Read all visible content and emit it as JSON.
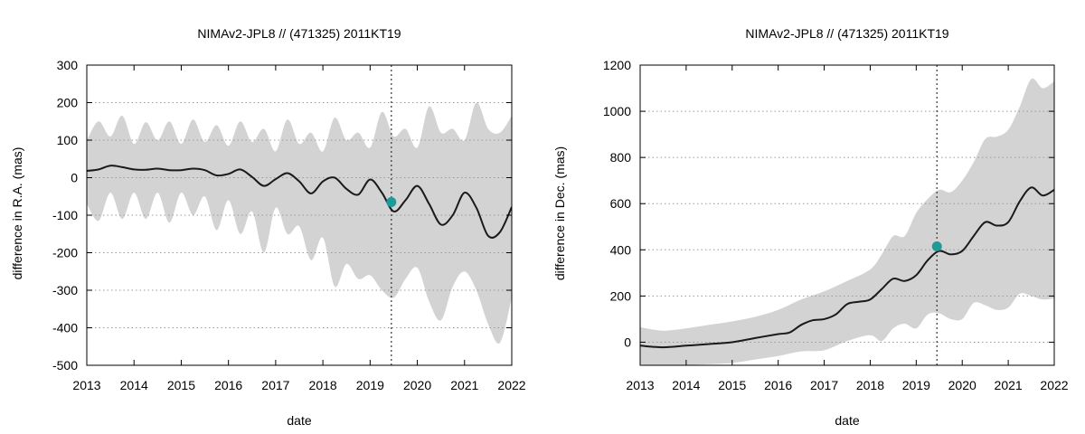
{
  "colors": {
    "band": "#d3d3d3",
    "line": "#1a1a1a",
    "marker": "#1e9a98",
    "grid": "#9a9a9a"
  },
  "chart_data": [
    {
      "type": "line",
      "title": "NIMAv2-JPL8 // (471325) 2011KT19",
      "xlabel": "date",
      "ylabel": "difference in R.A. (mas)",
      "xlim": [
        2013,
        2022
      ],
      "ylim": [
        -500,
        300
      ],
      "xticks": [
        "2013",
        "2014",
        "2015",
        "2016",
        "2017",
        "2018",
        "2019",
        "2020",
        "2021",
        "2022"
      ],
      "yticks": [
        "300",
        "200",
        "100",
        "0",
        "-100",
        "-200",
        "-300",
        "-400",
        "-500"
      ],
      "grid": "horizontal-dotted",
      "vline_x": 2019.45,
      "marker": {
        "x": 2019.45,
        "y": -65
      },
      "center": {
        "x": [
          2013.0,
          2013.25,
          2013.5,
          2013.75,
          2014.0,
          2014.25,
          2014.5,
          2014.75,
          2015.0,
          2015.25,
          2015.5,
          2015.75,
          2016.0,
          2016.25,
          2016.5,
          2016.75,
          2017.0,
          2017.25,
          2017.5,
          2017.75,
          2018.0,
          2018.25,
          2018.5,
          2018.75,
          2019.0,
          2019.25,
          2019.5,
          2019.75,
          2020.0,
          2020.25,
          2020.5,
          2020.75,
          2021.0,
          2021.25,
          2021.5,
          2021.75,
          2022.0
        ],
        "y": [
          18,
          22,
          32,
          28,
          22,
          21,
          24,
          20,
          20,
          24,
          20,
          6,
          10,
          22,
          2,
          -22,
          -4,
          12,
          -10,
          -42,
          -10,
          0,
          -30,
          -45,
          -5,
          -40,
          -90,
          -60,
          -22,
          -70,
          -125,
          -100,
          -40,
          -80,
          -155,
          -145,
          -78
        ]
      },
      "upper": {
        "x": [
          2013.0,
          2013.25,
          2013.5,
          2013.75,
          2014.0,
          2014.25,
          2014.5,
          2014.75,
          2015.0,
          2015.25,
          2015.5,
          2015.75,
          2016.0,
          2016.25,
          2016.5,
          2016.75,
          2017.0,
          2017.25,
          2017.5,
          2017.75,
          2018.0,
          2018.25,
          2018.5,
          2018.75,
          2019.0,
          2019.25,
          2019.5,
          2019.75,
          2020.0,
          2020.25,
          2020.5,
          2020.75,
          2021.0,
          2021.25,
          2021.5,
          2021.75,
          2022.0
        ],
        "y": [
          100,
          150,
          110,
          165,
          90,
          148,
          100,
          150,
          90,
          155,
          95,
          140,
          85,
          150,
          95,
          130,
          70,
          155,
          90,
          120,
          70,
          160,
          100,
          120,
          80,
          175,
          110,
          130,
          80,
          190,
          120,
          130,
          100,
          200,
          130,
          120,
          165
        ]
      },
      "lower": {
        "x": [
          2013.0,
          2013.25,
          2013.5,
          2013.75,
          2014.0,
          2014.25,
          2014.5,
          2014.75,
          2015.0,
          2015.25,
          2015.5,
          2015.75,
          2016.0,
          2016.25,
          2016.5,
          2016.75,
          2017.0,
          2017.25,
          2017.5,
          2017.75,
          2018.0,
          2018.25,
          2018.5,
          2018.75,
          2019.0,
          2019.25,
          2019.5,
          2019.75,
          2020.0,
          2020.25,
          2020.5,
          2020.75,
          2021.0,
          2021.25,
          2021.5,
          2021.75,
          2022.0
        ],
        "y": [
          -70,
          -115,
          -40,
          -110,
          -40,
          -110,
          -40,
          -120,
          -40,
          -100,
          -50,
          -140,
          -60,
          -150,
          -90,
          -200,
          -80,
          -150,
          -130,
          -220,
          -160,
          -290,
          -230,
          -270,
          -260,
          -300,
          -320,
          -270,
          -240,
          -330,
          -380,
          -290,
          -250,
          -300,
          -390,
          -440,
          -320
        ]
      }
    },
    {
      "type": "line",
      "title": "NIMAv2-JPL8 // (471325) 2011KT19",
      "xlabel": "date",
      "ylabel": "difference in Dec. (mas)",
      "xlim": [
        2013,
        2022
      ],
      "ylim": [
        -100,
        1200
      ],
      "xticks": [
        "2013",
        "2014",
        "2015",
        "2016",
        "2017",
        "2018",
        "2019",
        "2020",
        "2021",
        "2022"
      ],
      "yticks": [
        "1200",
        "1000",
        "800",
        "600",
        "400",
        "200",
        "0"
      ],
      "grid": "horizontal-dotted",
      "vline_x": 2019.45,
      "marker": {
        "x": 2019.45,
        "y": 415
      },
      "center": {
        "x": [
          2013.0,
          2013.5,
          2014.0,
          2014.5,
          2015.0,
          2015.5,
          2016.0,
          2016.25,
          2016.5,
          2016.75,
          2017.0,
          2017.25,
          2017.5,
          2017.75,
          2018.0,
          2018.25,
          2018.5,
          2018.75,
          2019.0,
          2019.25,
          2019.5,
          2019.75,
          2020.0,
          2020.25,
          2020.5,
          2020.75,
          2021.0,
          2021.25,
          2021.5,
          2021.75,
          2022.0
        ],
        "y": [
          -15,
          -22,
          -15,
          -8,
          0,
          18,
          35,
          42,
          75,
          95,
          100,
          120,
          165,
          175,
          185,
          230,
          275,
          265,
          290,
          355,
          395,
          380,
          395,
          460,
          520,
          505,
          520,
          610,
          670,
          635,
          660
        ]
      },
      "upper": {
        "x": [
          2013.0,
          2013.5,
          2014.0,
          2014.5,
          2015.0,
          2015.5,
          2016.0,
          2016.5,
          2017.0,
          2017.5,
          2018.0,
          2018.25,
          2018.5,
          2018.75,
          2019.0,
          2019.25,
          2019.5,
          2019.75,
          2020.0,
          2020.25,
          2020.5,
          2020.75,
          2021.0,
          2021.25,
          2021.5,
          2021.75,
          2022.0
        ],
        "y": [
          65,
          50,
          60,
          75,
          90,
          110,
          140,
          185,
          220,
          265,
          315,
          380,
          460,
          460,
          560,
          620,
          660,
          650,
          700,
          780,
          880,
          890,
          920,
          1020,
          1140,
          1100,
          1130
        ]
      },
      "lower": {
        "x": [
          2013.0,
          2013.5,
          2014.0,
          2014.5,
          2015.0,
          2015.5,
          2016.0,
          2016.5,
          2017.0,
          2017.5,
          2018.0,
          2018.25,
          2018.5,
          2018.75,
          2019.0,
          2019.25,
          2019.5,
          2019.75,
          2020.0,
          2020.25,
          2020.5,
          2020.75,
          2021.0,
          2021.25,
          2021.5,
          2021.75,
          2022.0
        ],
        "y": [
          -95,
          -110,
          -100,
          -95,
          -90,
          -75,
          -60,
          -40,
          -35,
          5,
          30,
          5,
          60,
          80,
          60,
          120,
          125,
          100,
          100,
          170,
          160,
          140,
          150,
          210,
          200,
          185,
          190
        ]
      }
    }
  ]
}
